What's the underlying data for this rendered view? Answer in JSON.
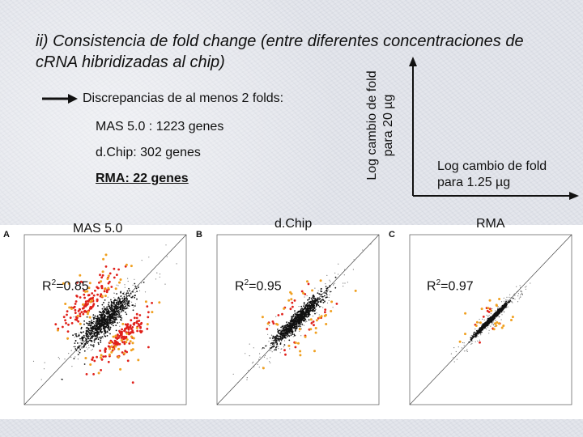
{
  "title": "ii) Consistencia de fold change (entre diferentes concentraciones de cRNA hibridizadas al chip)",
  "discrepancies": {
    "heading": "Discrepancias de al menos 2 folds:",
    "mas": "MAS 5.0 : 1223 genes",
    "dchip": "d.Chip: 302 genes",
    "rma": "RMA: 22 genes"
  },
  "axes_legend": {
    "y_label": "Log cambio de fold para 20 µg",
    "x_label_line1": "Log cambio de fold",
    "x_label_line2": "para 1.25 µg"
  },
  "colors": {
    "black_points": "#111111",
    "red_points": "#e0201a",
    "orange_points": "#f0a020",
    "arrow": "#111111"
  },
  "panels": [
    {
      "letter": "A",
      "title": "MAS 5.0",
      "r2_prefix": "R",
      "r2_sup": "2",
      "r2_value": "=0.85"
    },
    {
      "letter": "B",
      "title": "d.Chip",
      "r2_prefix": "R",
      "r2_sup": "2",
      "r2_value": "=0.95"
    },
    {
      "letter": "C",
      "title": "RMA",
      "r2_prefix": "R",
      "r2_sup": "2",
      "r2_value": "=0.97"
    }
  ]
}
